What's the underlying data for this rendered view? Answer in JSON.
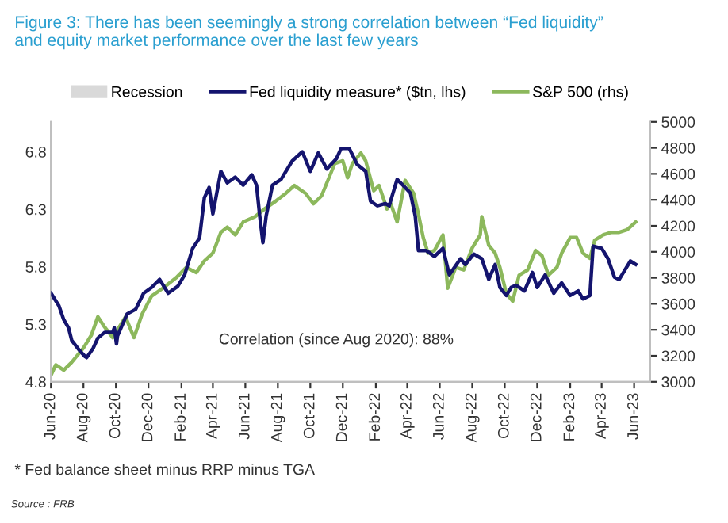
{
  "chart_data": {
    "type": "line",
    "title": "Figure 3: There has been seemingly a strong correlation between “Fed liquidity”\nand equity market performance over the last few years",
    "series": [
      {
        "name": "Recession",
        "type": "area",
        "color": "#d9d9d9"
      },
      {
        "name": "Fed liquidity measure* ($tn, lhs)",
        "color": "#14146e",
        "axis": "y",
        "x": [
          "2020-06-01",
          "2020-06-16",
          "2020-06-25",
          "2020-07-04",
          "2020-07-10",
          "2020-07-25",
          "2020-08-04",
          "2020-08-07",
          "2020-08-19",
          "2020-08-28",
          "2020-09-10",
          "2020-09-25",
          "2020-09-28",
          "2020-10-02",
          "2020-10-04",
          "2020-10-22",
          "2020-11-07",
          "2020-11-22",
          "2020-12-07",
          "2020-12-22",
          "2021-01-07",
          "2021-01-25",
          "2021-02-07",
          "2021-02-22",
          "2021-03-07",
          "2021-03-16",
          "2021-03-25",
          "2021-04-01",
          "2021-04-16",
          "2021-04-28",
          "2021-05-13",
          "2021-05-28",
          "2021-06-13",
          "2021-06-22",
          "2021-06-28",
          "2021-07-04",
          "2021-07-10",
          "2021-07-22",
          "2021-08-07",
          "2021-08-28",
          "2021-09-16",
          "2021-10-01",
          "2021-10-16",
          "2021-11-01",
          "2021-11-19",
          "2021-11-28",
          "2021-12-13",
          "2021-12-28",
          "2022-01-13",
          "2022-01-22",
          "2022-02-04",
          "2022-02-19",
          "2022-02-26",
          "2022-03-13",
          "2022-03-28",
          "2022-04-07",
          "2022-04-16",
          "2022-04-22",
          "2022-05-07",
          "2022-05-22",
          "2022-06-07",
          "2022-06-19",
          "2022-07-10",
          "2022-07-19",
          "2022-08-04",
          "2022-08-19",
          "2022-09-01",
          "2022-09-13",
          "2022-09-22",
          "2022-10-04",
          "2022-10-13",
          "2022-10-22",
          "2022-11-07",
          "2022-11-22",
          "2022-12-01",
          "2022-12-16",
          "2023-01-01",
          "2023-01-16",
          "2023-02-01",
          "2023-02-16",
          "2023-02-25",
          "2023-03-10",
          "2023-03-16",
          "2023-04-01",
          "2023-04-13",
          "2023-04-25",
          "2023-05-04",
          "2023-05-25",
          "2023-06-04"
        ],
        "values": [
          5.57,
          5.46,
          5.34,
          5.27,
          5.16,
          5.07,
          5.02,
          5.01,
          5.09,
          5.18,
          5.23,
          5.23,
          5.27,
          5.13,
          5.2,
          5.39,
          5.43,
          5.57,
          5.62,
          5.69,
          5.57,
          5.63,
          5.73,
          5.96,
          6.05,
          6.4,
          6.49,
          6.26,
          6.63,
          6.53,
          6.58,
          6.51,
          6.6,
          6.51,
          6.24,
          6.01,
          6.24,
          6.51,
          6.56,
          6.72,
          6.8,
          6.63,
          6.79,
          6.65,
          6.74,
          6.83,
          6.83,
          6.69,
          6.63,
          6.37,
          6.33,
          6.35,
          6.33,
          6.56,
          6.49,
          6.44,
          6.24,
          5.94,
          5.94,
          5.89,
          5.96,
          5.73,
          5.87,
          5.82,
          5.91,
          5.87,
          5.69,
          5.82,
          5.62,
          5.55,
          5.62,
          5.64,
          5.59,
          5.75,
          5.62,
          5.73,
          5.57,
          5.66,
          5.55,
          5.59,
          5.52,
          5.55,
          5.98,
          5.96,
          5.87,
          5.71,
          5.69,
          5.85,
          5.82
        ]
      },
      {
        "name": "S&P 500 (rhs)",
        "color": "#8cb85c",
        "axis": "y2",
        "x": [
          "2020-06-01",
          "2020-06-10",
          "2020-06-25",
          "2020-07-10",
          "2020-08-01",
          "2020-08-16",
          "2020-08-28",
          "2020-09-10",
          "2020-09-25",
          "2020-10-19",
          "2020-11-04",
          "2020-11-19",
          "2020-12-07",
          "2020-12-28",
          "2021-01-22",
          "2021-02-10",
          "2021-03-01",
          "2021-03-16",
          "2021-04-01",
          "2021-04-16",
          "2021-04-28",
          "2021-05-13",
          "2021-05-28",
          "2021-06-19",
          "2021-07-07",
          "2021-07-28",
          "2021-08-16",
          "2021-09-01",
          "2021-09-22",
          "2021-10-07",
          "2021-10-22",
          "2021-11-16",
          "2021-12-01",
          "2021-12-10",
          "2021-12-19",
          "2022-01-04",
          "2022-01-13",
          "2022-01-28",
          "2022-02-07",
          "2022-02-22",
          "2022-03-01",
          "2022-03-13",
          "2022-03-28",
          "2022-04-13",
          "2022-04-22",
          "2022-05-01",
          "2022-05-10",
          "2022-05-22",
          "2022-06-07",
          "2022-06-16",
          "2022-07-01",
          "2022-07-16",
          "2022-08-01",
          "2022-08-16",
          "2022-08-19",
          "2022-09-01",
          "2022-09-13",
          "2022-09-22",
          "2022-10-04",
          "2022-10-16",
          "2022-10-28",
          "2022-11-13",
          "2022-11-28",
          "2022-12-10",
          "2022-12-22",
          "2023-01-07",
          "2023-01-16",
          "2023-02-01",
          "2023-02-13",
          "2023-02-25",
          "2023-03-10",
          "2023-03-19",
          "2023-04-04",
          "2023-04-19",
          "2023-05-04",
          "2023-05-19",
          "2023-06-04"
        ],
        "values": [
          3050,
          3130,
          3090,
          3150,
          3260,
          3360,
          3500,
          3420,
          3340,
          3500,
          3340,
          3520,
          3660,
          3720,
          3800,
          3880,
          3840,
          3930,
          3990,
          4150,
          4190,
          4130,
          4230,
          4270,
          4330,
          4390,
          4450,
          4510,
          4450,
          4370,
          4430,
          4680,
          4700,
          4570,
          4680,
          4760,
          4700,
          4470,
          4510,
          4330,
          4370,
          4230,
          4550,
          4450,
          4290,
          4110,
          3990,
          4010,
          4130,
          3720,
          3880,
          3860,
          4030,
          4130,
          4270,
          4050,
          3990,
          3880,
          3680,
          3620,
          3820,
          3860,
          4010,
          3970,
          3820,
          3880,
          3990,
          4110,
          4110,
          3990,
          3950,
          4090,
          4130,
          4150,
          4150,
          4170,
          4230
        ]
      }
    ],
    "xlim": [
      "2020-06-01",
      "2023-07-01"
    ],
    "xticks": [
      {
        "value": "2020-06-01",
        "label": "Jun-20"
      },
      {
        "value": "2020-08-01",
        "label": "Aug-20"
      },
      {
        "value": "2020-10-01",
        "label": "Oct-20"
      },
      {
        "value": "2020-12-01",
        "label": "Dec-20"
      },
      {
        "value": "2021-02-01",
        "label": "Feb-21"
      },
      {
        "value": "2021-04-01",
        "label": "Apr-21"
      },
      {
        "value": "2021-06-01",
        "label": "Jun-21"
      },
      {
        "value": "2021-08-01",
        "label": "Aug-21"
      },
      {
        "value": "2021-10-01",
        "label": "Oct-21"
      },
      {
        "value": "2021-12-01",
        "label": "Dec-21"
      },
      {
        "value": "2022-02-01",
        "label": "Feb-22"
      },
      {
        "value": "2022-04-01",
        "label": "Apr-22"
      },
      {
        "value": "2022-06-01",
        "label": "Jun-22"
      },
      {
        "value": "2022-08-01",
        "label": "Aug-22"
      },
      {
        "value": "2022-10-01",
        "label": "Oct-22"
      },
      {
        "value": "2022-12-01",
        "label": "Dec-22"
      },
      {
        "value": "2023-02-01",
        "label": "Feb-23"
      },
      {
        "value": "2023-04-01",
        "label": "Apr-23"
      },
      {
        "value": "2023-06-01",
        "label": "Jun-23"
      }
    ],
    "ylim": [
      4.8,
      7.06
    ],
    "yticks": [
      4.8,
      5.3,
      5.8,
      6.3,
      6.8
    ],
    "y2lim": [
      3000,
      5000
    ],
    "y2ticks": [
      3000,
      3200,
      3400,
      3600,
      3800,
      4000,
      4200,
      4400,
      4600,
      4800,
      5000
    ],
    "annotations": [
      "Correlation (since Aug 2020): 88%",
      "* Fed balance sheet minus RRP minus TGA",
      "Source : FRB"
    ],
    "grid": false,
    "legend": "top",
    "marker": "none",
    "line_style": "solid"
  }
}
